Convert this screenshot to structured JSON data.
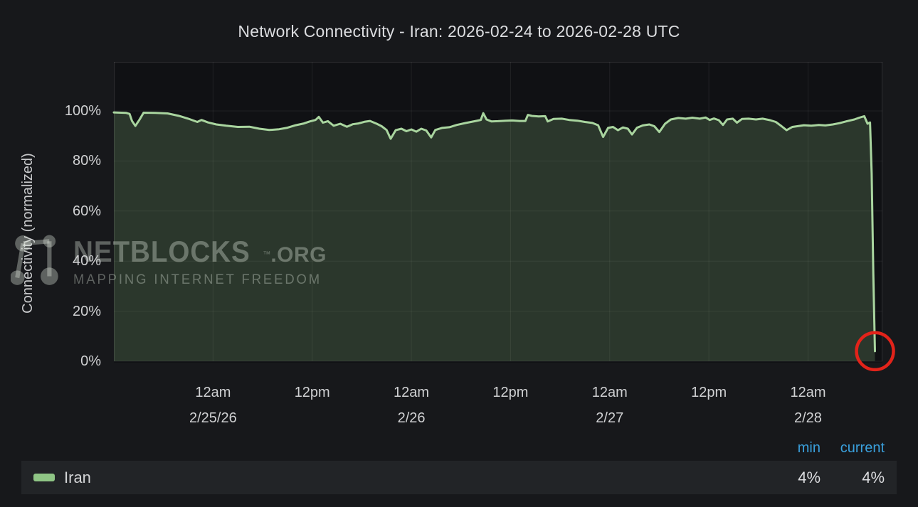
{
  "title": "Network Connectivity - Iran: 2026-02-24 to 2026-02-28 UTC",
  "y_axis": {
    "label": "Connectivity (normalized)"
  },
  "legend": {
    "headers": [
      "min",
      "current"
    ]
  },
  "watermark": {
    "brand": "NETBLOCKS",
    "tm": "™",
    "suffix": ".ORG",
    "tagline": "MAPPING INTERNET FREEDOM"
  },
  "colors": {
    "background": "#17181b",
    "plot_background": "#101114",
    "line_green": "#a9d59f",
    "area_fill": "rgba(156,212,142,0.20)",
    "grid": "rgba(255,255,255,0.07)",
    "axis_border": "rgba(255,255,255,0.12)",
    "header_blue": "#3aa0dd",
    "annotation_red": "#e2231a",
    "legend_row_bg": "#222427",
    "swatch_green": "#8fc585"
  },
  "chart_data": {
    "type": "area",
    "title": "Network Connectivity - Iran: 2026-02-24 to 2026-02-28 UTC",
    "xlabel": "",
    "ylabel": "Connectivity (normalized)",
    "x_unit": "hours since 2026-02-24 12:00 UTC",
    "x_domain": [
      0,
      93
    ],
    "ylim": [
      0,
      100
    ],
    "y_headroom_display_max": 120,
    "grid": true,
    "legend_position": "bottom",
    "x_ticks": [
      {
        "t": 12,
        "time": "12am",
        "date": "2/25/26"
      },
      {
        "t": 24,
        "time": "12pm"
      },
      {
        "t": 36,
        "time": "12am",
        "date": "2/26"
      },
      {
        "t": 48,
        "time": "12pm"
      },
      {
        "t": 60,
        "time": "12am",
        "date": "2/27"
      },
      {
        "t": 72,
        "time": "12pm"
      },
      {
        "t": 84,
        "time": "12am",
        "date": "2/28"
      }
    ],
    "y_ticks": [
      {
        "v": 100,
        "label": "100%"
      },
      {
        "v": 80,
        "label": "80%"
      },
      {
        "v": 60,
        "label": "60%"
      },
      {
        "v": 40,
        "label": "40%"
      },
      {
        "v": 20,
        "label": "20%"
      },
      {
        "v": 0,
        "label": "0%"
      }
    ],
    "series": [
      {
        "name": "Iran",
        "color": "#a9d59f",
        "min": "4%",
        "current": "4%",
        "points": [
          [
            0,
            99.4
          ],
          [
            1.5,
            99.2
          ],
          [
            1.9,
            98.8
          ],
          [
            2.2,
            96.0
          ],
          [
            2.6,
            94.0
          ],
          [
            3.1,
            96.5
          ],
          [
            3.6,
            99.3
          ],
          [
            5.0,
            99.2
          ],
          [
            6.5,
            99.0
          ],
          [
            7.9,
            98.0
          ],
          [
            9.0,
            96.9
          ],
          [
            10.1,
            95.6
          ],
          [
            10.6,
            96.4
          ],
          [
            11.4,
            95.4
          ],
          [
            12.4,
            94.6
          ],
          [
            13.6,
            94.1
          ],
          [
            15.0,
            93.6
          ],
          [
            16.4,
            93.7
          ],
          [
            17.6,
            92.9
          ],
          [
            18.8,
            92.4
          ],
          [
            20.0,
            92.7
          ],
          [
            21.0,
            93.3
          ],
          [
            22.0,
            94.3
          ],
          [
            23.0,
            95.0
          ],
          [
            23.7,
            95.8
          ],
          [
            24.4,
            96.4
          ],
          [
            24.8,
            97.6
          ],
          [
            25.3,
            95.3
          ],
          [
            25.9,
            95.9
          ],
          [
            26.6,
            94.1
          ],
          [
            27.4,
            94.9
          ],
          [
            28.2,
            93.7
          ],
          [
            28.9,
            94.7
          ],
          [
            29.6,
            95.0
          ],
          [
            30.4,
            95.7
          ],
          [
            31.0,
            96.0
          ],
          [
            31.8,
            94.9
          ],
          [
            32.4,
            93.9
          ],
          [
            33.0,
            92.4
          ],
          [
            33.5,
            88.9
          ],
          [
            34.1,
            92.3
          ],
          [
            34.8,
            92.9
          ],
          [
            35.4,
            91.9
          ],
          [
            36.0,
            92.6
          ],
          [
            36.6,
            91.7
          ],
          [
            37.2,
            92.9
          ],
          [
            37.8,
            92.2
          ],
          [
            38.4,
            89.4
          ],
          [
            38.9,
            92.4
          ],
          [
            39.7,
            93.2
          ],
          [
            40.6,
            93.5
          ],
          [
            41.5,
            94.4
          ],
          [
            42.6,
            95.2
          ],
          [
            43.7,
            95.9
          ],
          [
            44.4,
            96.4
          ],
          [
            44.7,
            99.1
          ],
          [
            45.1,
            96.6
          ],
          [
            45.7,
            95.8
          ],
          [
            46.5,
            95.9
          ],
          [
            47.4,
            96.1
          ],
          [
            48.2,
            96.2
          ],
          [
            49.1,
            96.0
          ],
          [
            49.8,
            96.0
          ],
          [
            50.1,
            98.4
          ],
          [
            50.6,
            98.0
          ],
          [
            51.4,
            97.8
          ],
          [
            52.2,
            97.9
          ],
          [
            52.5,
            95.8
          ],
          [
            53.2,
            96.8
          ],
          [
            54.2,
            96.9
          ],
          [
            55.1,
            96.4
          ],
          [
            56.1,
            96.1
          ],
          [
            57.0,
            95.6
          ],
          [
            57.9,
            95.2
          ],
          [
            58.6,
            94.3
          ],
          [
            59.2,
            89.6
          ],
          [
            59.8,
            93.2
          ],
          [
            60.4,
            93.6
          ],
          [
            61.0,
            92.3
          ],
          [
            61.6,
            93.4
          ],
          [
            62.2,
            92.9
          ],
          [
            62.7,
            90.6
          ],
          [
            63.3,
            93.3
          ],
          [
            64.0,
            94.2
          ],
          [
            64.8,
            94.6
          ],
          [
            65.4,
            93.9
          ],
          [
            66.0,
            91.6
          ],
          [
            66.7,
            94.9
          ],
          [
            67.4,
            96.6
          ],
          [
            68.3,
            97.2
          ],
          [
            69.2,
            96.9
          ],
          [
            70.0,
            97.3
          ],
          [
            70.9,
            96.9
          ],
          [
            71.6,
            97.4
          ],
          [
            72.1,
            96.4
          ],
          [
            72.6,
            97.0
          ],
          [
            73.2,
            96.3
          ],
          [
            73.7,
            94.4
          ],
          [
            74.2,
            96.6
          ],
          [
            74.9,
            96.9
          ],
          [
            75.4,
            95.3
          ],
          [
            76.0,
            96.8
          ],
          [
            76.8,
            96.9
          ],
          [
            77.7,
            96.6
          ],
          [
            78.5,
            96.9
          ],
          [
            79.4,
            96.3
          ],
          [
            80.1,
            95.6
          ],
          [
            80.8,
            93.9
          ],
          [
            81.4,
            92.3
          ],
          [
            82.1,
            93.6
          ],
          [
            82.7,
            93.9
          ],
          [
            83.5,
            94.3
          ],
          [
            84.4,
            94.1
          ],
          [
            85.3,
            94.4
          ],
          [
            86.1,
            94.2
          ],
          [
            87.0,
            94.6
          ],
          [
            87.8,
            95.1
          ],
          [
            88.7,
            95.9
          ],
          [
            89.6,
            96.6
          ],
          [
            90.2,
            97.3
          ],
          [
            90.8,
            97.9
          ],
          [
            91.2,
            94.9
          ],
          [
            91.5,
            95.4
          ],
          [
            91.7,
            75.0
          ],
          [
            91.9,
            35.0
          ],
          [
            92.1,
            4.0
          ]
        ]
      }
    ],
    "annotations": [
      {
        "type": "circle",
        "t": 92.1,
        "v": 4,
        "radius_px": 26,
        "color": "#e2231a"
      }
    ]
  }
}
